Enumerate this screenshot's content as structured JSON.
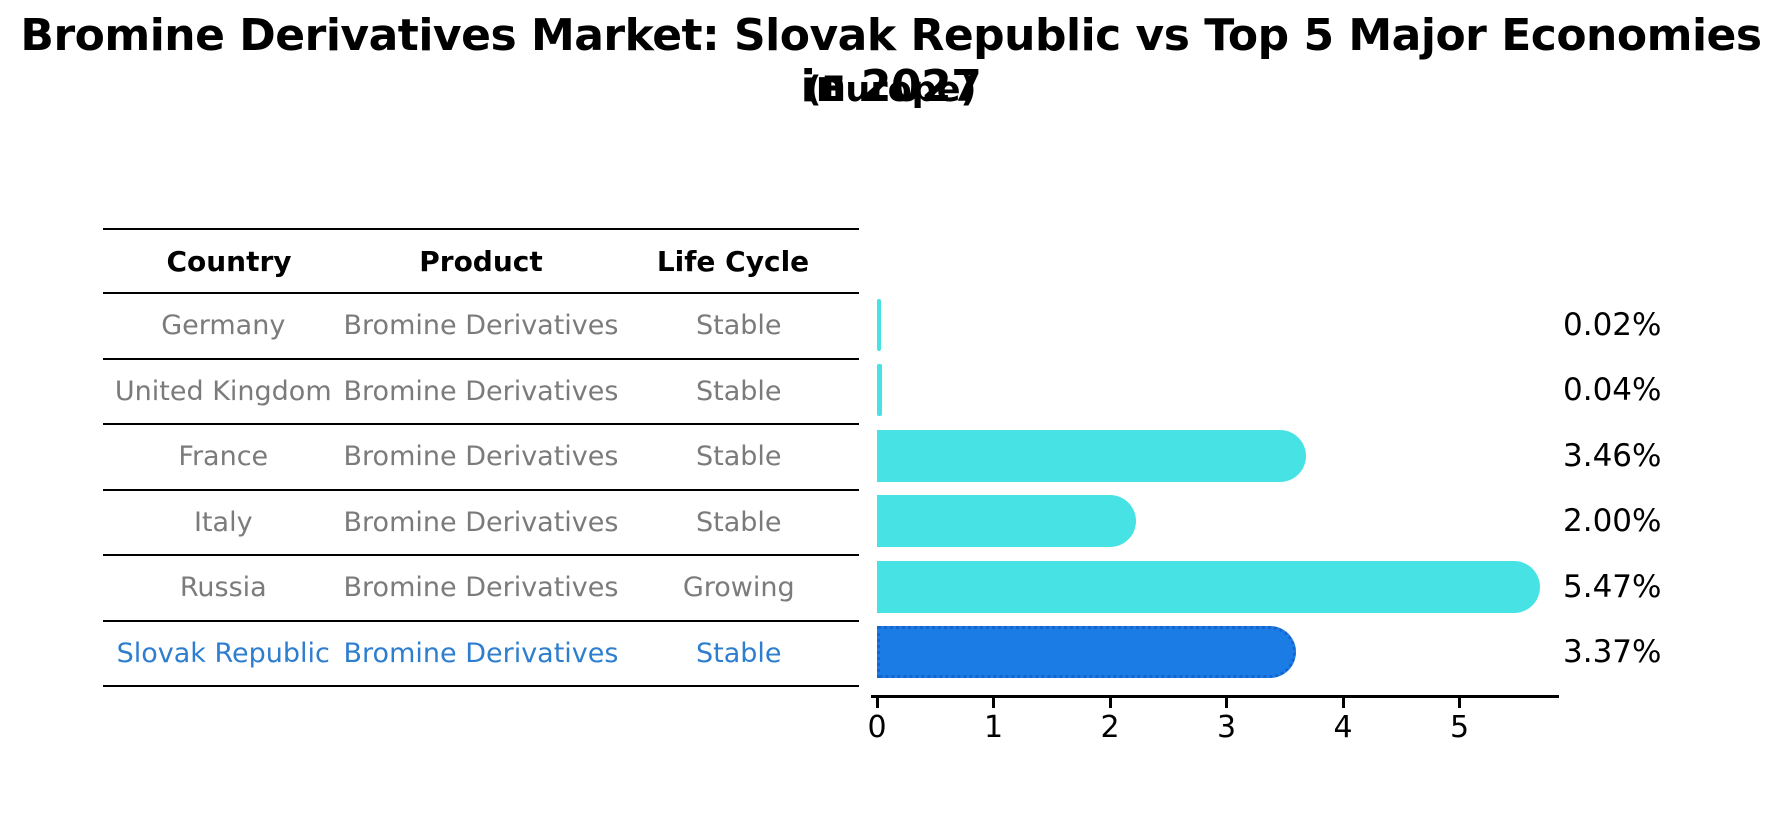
{
  "title": "Bromine Derivatives Market: Slovak Republic vs Top 5 Major Economies in 2027",
  "subtitle": "(Europe)",
  "table": {
    "headers": [
      "Country",
      "Product",
      "Life Cycle"
    ],
    "rows": [
      {
        "country": "Germany",
        "product": "Bromine Derivatives",
        "life_cycle": "Stable",
        "highlighted": false
      },
      {
        "country": "United Kingdom",
        "product": "Bromine Derivatives",
        "life_cycle": "Stable",
        "highlighted": false
      },
      {
        "country": "France",
        "product": "Bromine Derivatives",
        "life_cycle": "Stable",
        "highlighted": false
      },
      {
        "country": "Italy",
        "product": "Bromine Derivatives",
        "life_cycle": "Stable",
        "highlighted": false
      },
      {
        "country": "Russia",
        "product": "Bromine Derivatives",
        "life_cycle": "Growing",
        "highlighted": false
      },
      {
        "country": "Slovak Republic",
        "product": "Bromine Derivatives",
        "life_cycle": "Stable",
        "highlighted": true
      }
    ]
  },
  "chart_data": {
    "type": "bar",
    "orientation": "horizontal",
    "title": "Bromine Derivatives Market: Slovak Republic vs Top 5 Major Economies in 2027",
    "subtitle": "(Europe)",
    "categories": [
      "Germany",
      "United Kingdom",
      "France",
      "Italy",
      "Russia",
      "Slovak Republic"
    ],
    "values": [
      0.02,
      0.04,
      3.46,
      2.0,
      5.47,
      3.37
    ],
    "labels": [
      "0.02%",
      "0.04%",
      "3.46%",
      "2.00%",
      "5.47%",
      "3.37%"
    ],
    "x_ticks": [
      0,
      1,
      2,
      3,
      4,
      5
    ],
    "xlim": [
      0,
      5.85
    ],
    "highlight_index": 5,
    "grid": false,
    "legend": false
  },
  "colors": {
    "bar": "#47E2E4",
    "highlight_bar": "#1C7CE6",
    "highlight_border": "#1565CF",
    "highlight_text": "#2E7ECF",
    "row_text": "#7b7b7b",
    "header_text": "#000000",
    "axis": "#000000"
  }
}
